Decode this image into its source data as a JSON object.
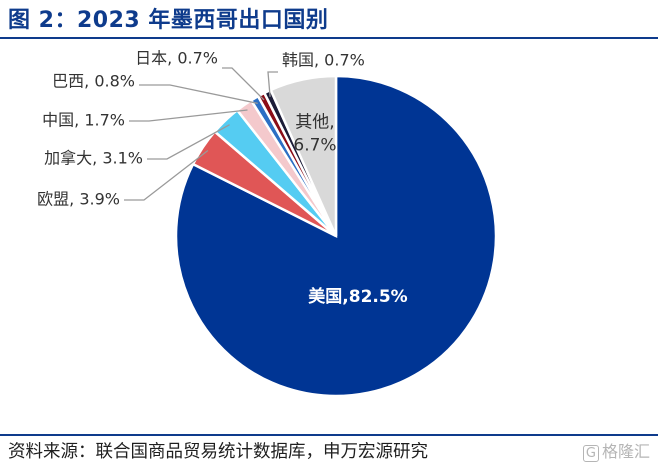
{
  "title": "图 2：2023 年墨西哥出口国别",
  "source": "资料来源：联合国商品贸易统计数据库，申万宏源研究",
  "watermark": {
    "icon": "G",
    "text": "格隆汇"
  },
  "chart_data": {
    "type": "pie",
    "title": "图 2：2023 年墨西哥出口国别",
    "slices": [
      {
        "name": "美国",
        "value": 82.5,
        "label": "美国,82.5%",
        "color": "#003594"
      },
      {
        "name": "欧盟",
        "value": 3.9,
        "label": "欧盟, 3.9%",
        "color": "#e05656"
      },
      {
        "name": "加拿大",
        "value": 3.1,
        "label": "加拿大, 3.1%",
        "color": "#55ccf2"
      },
      {
        "name": "中国",
        "value": 1.7,
        "label": "中国, 1.7%",
        "color": "#f4c9cc"
      },
      {
        "name": "巴西",
        "value": 0.8,
        "label": "巴西, 0.8%",
        "color": "#2c6fc4"
      },
      {
        "name": "日本",
        "value": 0.7,
        "label": "日本, 0.7%",
        "color": "#8b0d17"
      },
      {
        "name": "韩国",
        "value": 0.7,
        "label": "韩国, 0.7%",
        "color": "#1c1c38"
      },
      {
        "name": "其他",
        "value": 6.7,
        "label": "其他, 6.7%",
        "label_lines": [
          "其他,",
          "6.7%"
        ],
        "color": "#d9d9d9"
      }
    ]
  }
}
